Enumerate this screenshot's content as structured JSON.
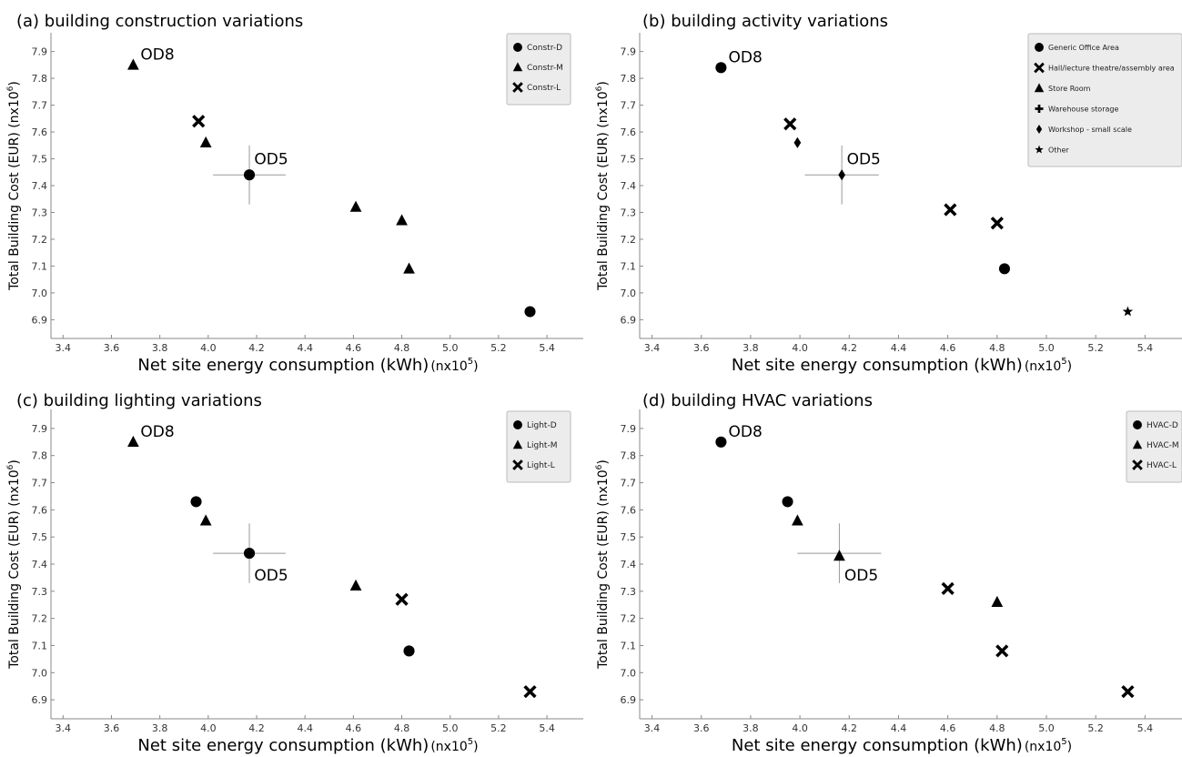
{
  "chart_data": [
    {
      "type": "scatter",
      "title": "(a) building construction variations",
      "xlabel": "Net site energy consumption (kWh)",
      "xunit": "(nx10",
      "xexp": "5",
      "ylabel": "Total Building Cost (EUR) (nx10",
      "yexp": "6",
      "xlim": [
        3.35,
        5.55
      ],
      "ylim": [
        6.83,
        7.97
      ],
      "xticks": [
        "3.4",
        "3.6",
        "3.8",
        "4.0",
        "4.2",
        "4.4",
        "4.6",
        "4.8",
        "5.0",
        "5.2",
        "5.4"
      ],
      "yticks": [
        "6.9",
        "7.0",
        "7.1",
        "7.2",
        "7.3",
        "7.4",
        "7.5",
        "7.6",
        "7.7",
        "7.8",
        "7.9"
      ],
      "legend_position": "top-right",
      "legend": [
        {
          "name": "Constr-D",
          "marker": "circle"
        },
        {
          "name": "Constr-M",
          "marker": "triangle"
        },
        {
          "name": "Constr-L",
          "marker": "cross"
        }
      ],
      "points": [
        {
          "x": 3.69,
          "y": 7.85,
          "marker": "triangle"
        },
        {
          "x": 3.96,
          "y": 7.64,
          "marker": "cross"
        },
        {
          "x": 3.99,
          "y": 7.56,
          "marker": "triangle"
        },
        {
          "x": 4.17,
          "y": 7.44,
          "marker": "circle"
        },
        {
          "x": 4.61,
          "y": 7.32,
          "marker": "triangle"
        },
        {
          "x": 4.8,
          "y": 7.27,
          "marker": "triangle"
        },
        {
          "x": 4.83,
          "y": 7.09,
          "marker": "triangle"
        },
        {
          "x": 5.33,
          "y": 6.93,
          "marker": "circle"
        }
      ],
      "annotations": [
        {
          "text": "OD8",
          "x": 3.72,
          "y": 7.87
        },
        {
          "text": "OD5",
          "x": 4.19,
          "y": 7.48
        }
      ],
      "crosshair": {
        "x": 4.17,
        "y": 7.44,
        "dx": 0.15,
        "dy": 0.11
      }
    },
    {
      "type": "scatter",
      "title": "(b) building activity variations",
      "xlabel": "Net site energy consumption (kWh)",
      "xunit": "(nx10",
      "xexp": "5",
      "ylabel": "Total Building Cost (EUR) (nx10",
      "yexp": "6",
      "xlim": [
        3.35,
        5.55
      ],
      "ylim": [
        6.83,
        7.97
      ],
      "xticks": [
        "3.4",
        "3.6",
        "3.8",
        "4.0",
        "4.2",
        "4.4",
        "4.6",
        "4.8",
        "5.0",
        "5.2",
        "5.4"
      ],
      "yticks": [
        "6.9",
        "7.0",
        "7.1",
        "7.2",
        "7.3",
        "7.4",
        "7.5",
        "7.6",
        "7.7",
        "7.8",
        "7.9"
      ],
      "legend_position": "top-right",
      "legend": [
        {
          "name": "Generic Office Area",
          "marker": "circle"
        },
        {
          "name": "Hall/lecture theatre/assembly area",
          "marker": "cross"
        },
        {
          "name": "Store Room",
          "marker": "triangle"
        },
        {
          "name": "Warehouse storage",
          "marker": "plus"
        },
        {
          "name": "Workshop - small scale",
          "marker": "diamond"
        },
        {
          "name": "Other",
          "marker": "star"
        }
      ],
      "points": [
        {
          "x": 3.68,
          "y": 7.84,
          "marker": "circle"
        },
        {
          "x": 3.96,
          "y": 7.63,
          "marker": "cross"
        },
        {
          "x": 3.99,
          "y": 7.56,
          "marker": "diamond"
        },
        {
          "x": 4.17,
          "y": 7.44,
          "marker": "diamond"
        },
        {
          "x": 4.61,
          "y": 7.31,
          "marker": "cross"
        },
        {
          "x": 4.8,
          "y": 7.26,
          "marker": "cross"
        },
        {
          "x": 4.83,
          "y": 7.09,
          "marker": "circle"
        },
        {
          "x": 5.33,
          "y": 6.93,
          "marker": "star"
        }
      ],
      "annotations": [
        {
          "text": "OD8",
          "x": 3.71,
          "y": 7.86
        },
        {
          "text": "OD5",
          "x": 4.19,
          "y": 7.48
        }
      ],
      "crosshair": {
        "x": 4.17,
        "y": 7.44,
        "dx": 0.15,
        "dy": 0.11
      }
    },
    {
      "type": "scatter",
      "title": "(c) building lighting variations",
      "xlabel": "Net site energy consumption (kWh)",
      "xunit": "(nx10",
      "xexp": "5",
      "ylabel": "Total Building Cost (EUR) (nx10",
      "yexp": "6",
      "xlim": [
        3.35,
        5.55
      ],
      "ylim": [
        6.83,
        7.97
      ],
      "xticks": [
        "3.4",
        "3.6",
        "3.8",
        "4.0",
        "4.2",
        "4.4",
        "4.6",
        "4.8",
        "5.0",
        "5.2",
        "5.4"
      ],
      "yticks": [
        "6.9",
        "7.0",
        "7.1",
        "7.2",
        "7.3",
        "7.4",
        "7.5",
        "7.6",
        "7.7",
        "7.8",
        "7.9"
      ],
      "legend_position": "top-right",
      "legend": [
        {
          "name": "Light-D",
          "marker": "circle"
        },
        {
          "name": "Light-M",
          "marker": "triangle"
        },
        {
          "name": "Light-L",
          "marker": "cross"
        }
      ],
      "points": [
        {
          "x": 3.69,
          "y": 7.85,
          "marker": "triangle"
        },
        {
          "x": 3.95,
          "y": 7.63,
          "marker": "circle"
        },
        {
          "x": 3.99,
          "y": 7.56,
          "marker": "triangle"
        },
        {
          "x": 4.17,
          "y": 7.44,
          "marker": "circle"
        },
        {
          "x": 4.61,
          "y": 7.32,
          "marker": "triangle"
        },
        {
          "x": 4.8,
          "y": 7.27,
          "marker": "cross"
        },
        {
          "x": 4.83,
          "y": 7.08,
          "marker": "circle"
        },
        {
          "x": 5.33,
          "y": 6.93,
          "marker": "cross"
        }
      ],
      "annotations": [
        {
          "text": "OD8",
          "x": 3.72,
          "y": 7.87
        },
        {
          "text": "OD5",
          "x": 4.19,
          "y": 7.34
        }
      ],
      "crosshair": {
        "x": 4.17,
        "y": 7.44,
        "dx": 0.15,
        "dy": 0.11
      }
    },
    {
      "type": "scatter",
      "title": "(d) building HVAC variations",
      "xlabel": "Net site energy consumption (kWh)",
      "xunit": "(nx10",
      "xexp": "5",
      "ylabel": "Total Building Cost (EUR) (nx10",
      "yexp": "6",
      "xlim": [
        3.35,
        5.55
      ],
      "ylim": [
        6.83,
        7.97
      ],
      "xticks": [
        "3.4",
        "3.6",
        "3.8",
        "4.0",
        "4.2",
        "4.4",
        "4.6",
        "4.8",
        "5.0",
        "5.2",
        "5.4"
      ],
      "yticks": [
        "6.9",
        "7.0",
        "7.1",
        "7.2",
        "7.3",
        "7.4",
        "7.5",
        "7.6",
        "7.7",
        "7.8",
        "7.9"
      ],
      "legend_position": "top-right",
      "legend": [
        {
          "name": "HVAC-D",
          "marker": "circle"
        },
        {
          "name": "HVAC-M",
          "marker": "triangle"
        },
        {
          "name": "HVAC-L",
          "marker": "cross"
        }
      ],
      "points": [
        {
          "x": 3.68,
          "y": 7.85,
          "marker": "circle"
        },
        {
          "x": 3.95,
          "y": 7.63,
          "marker": "circle"
        },
        {
          "x": 3.99,
          "y": 7.56,
          "marker": "triangle"
        },
        {
          "x": 4.16,
          "y": 7.43,
          "marker": "triangle"
        },
        {
          "x": 4.6,
          "y": 7.31,
          "marker": "cross"
        },
        {
          "x": 4.8,
          "y": 7.26,
          "marker": "triangle"
        },
        {
          "x": 4.82,
          "y": 7.08,
          "marker": "cross"
        },
        {
          "x": 5.33,
          "y": 6.93,
          "marker": "cross"
        }
      ],
      "annotations": [
        {
          "text": "OD8",
          "x": 3.71,
          "y": 7.87
        },
        {
          "text": "OD5",
          "x": 4.18,
          "y": 7.34
        }
      ],
      "crosshair": {
        "x": 4.16,
        "y": 7.44,
        "dx": 0.17,
        "dy": 0.11
      }
    }
  ]
}
